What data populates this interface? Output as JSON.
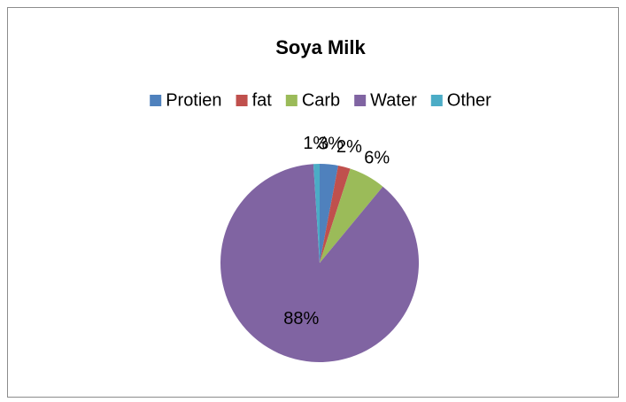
{
  "chart_data": {
    "type": "pie",
    "title": "Soya Milk",
    "categories": [
      "Protien",
      "fat",
      "Carb",
      "Water",
      "Other"
    ],
    "values": [
      3,
      2,
      6,
      88,
      1
    ],
    "value_labels": [
      "3%",
      "2%",
      "6%",
      "88%",
      "1%"
    ],
    "colors": [
      "#4f81bd",
      "#c0504d",
      "#9bbb59",
      "#8064a2",
      "#4bacc6"
    ],
    "legend": "top"
  }
}
